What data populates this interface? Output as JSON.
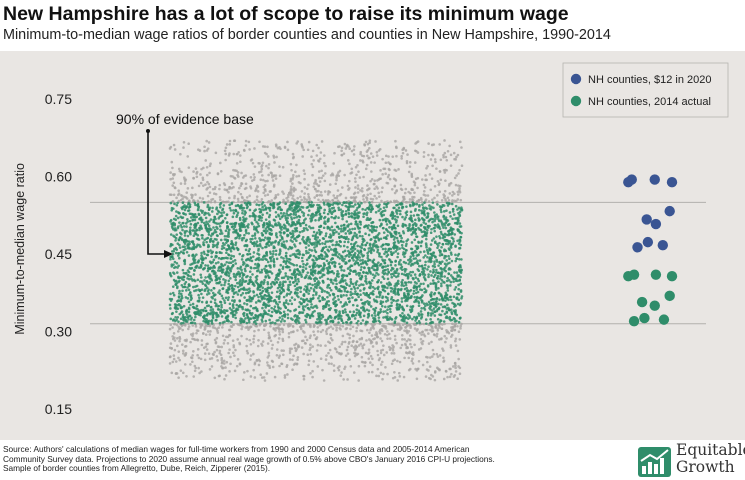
{
  "chart_data": {
    "type": "scatter",
    "title": "New Hampshire has a lot of scope to raise its minimum wage",
    "subtitle": "Minimum-to-median wage ratios of border counties and counties in New Hampshire, 1990-2014",
    "ylabel": "Minimum-to-median wage ratio",
    "xlabel": "",
    "ylim": [
      0.1,
      0.82
    ],
    "yticks": [
      "0.15",
      "0.30",
      "0.45",
      "0.60",
      "0.75"
    ],
    "ytick_values": [
      0.15,
      0.3,
      0.45,
      0.6,
      0.75
    ],
    "reference_lines": [
      0.55,
      0.315
    ],
    "annotation": {
      "text": "90% of evidence base",
      "points_to": 0.45
    },
    "legend": {
      "position": "top-right",
      "entries": [
        {
          "label": "NH counties, $12 in 2020",
          "color": "#3a5593"
        },
        {
          "label": "NH counties, 2014 actual",
          "color": "#2f8d6a"
        }
      ]
    },
    "evidence_base": {
      "inner_band": [
        0.315,
        0.55
      ],
      "outer_range": [
        0.2,
        0.69
      ],
      "inner_color": "#2f8d6a",
      "outer_color": "#a7a5a2"
    },
    "series": [
      {
        "name": "NH counties, $12 in 2020",
        "color": "#3a5593",
        "points": [
          [
            0.2,
            0.589
          ],
          [
            0.5,
            0.594
          ],
          [
            2.5,
            0.594
          ],
          [
            4.0,
            0.589
          ],
          [
            1.8,
            0.517
          ],
          [
            3.8,
            0.533
          ],
          [
            2.6,
            0.508
          ],
          [
            1.0,
            0.463
          ],
          [
            1.9,
            0.473
          ],
          [
            3.2,
            0.467
          ]
        ]
      },
      {
        "name": "NH counties, 2014 actual",
        "color": "#2f8d6a",
        "points": [
          [
            0.2,
            0.407
          ],
          [
            0.7,
            0.41
          ],
          [
            2.6,
            0.41
          ],
          [
            4.0,
            0.407
          ],
          [
            1.4,
            0.357
          ],
          [
            2.5,
            0.35
          ],
          [
            3.8,
            0.369
          ],
          [
            0.7,
            0.32
          ],
          [
            1.6,
            0.326
          ],
          [
            3.3,
            0.323
          ]
        ]
      }
    ]
  },
  "footer": {
    "source_line1": "Source: Authors' calculations of median wages for full-time workers from 1990 and 2000 Census data and 2005-2014 American",
    "source_line2": "Community Survey data. Projections to 2020 assume annual real wage growth of 0.5% above CBO's January 2016 CPI-U projections.",
    "source_line3": "Sample of border counties from Allegretto, Dube, Reich, Zipperer (2015).",
    "logo_line1": "Equitable",
    "logo_line2": "Growth",
    "logo_icon": "equitable-growth-logo-icon"
  }
}
